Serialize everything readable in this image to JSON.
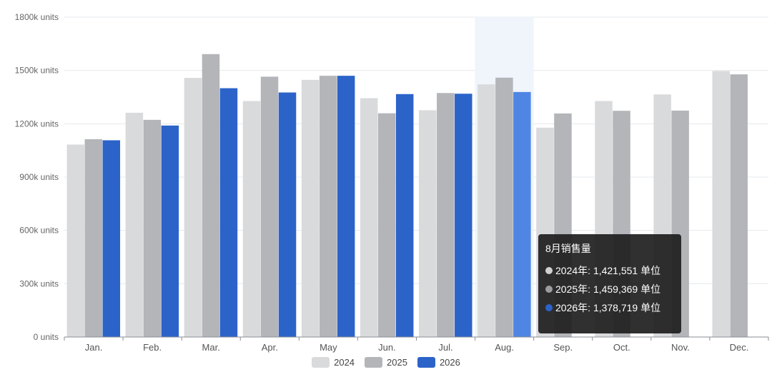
{
  "chart_data": {
    "type": "bar",
    "categories": [
      "Jan.",
      "Feb.",
      "Mar.",
      "Apr.",
      "May",
      "Jun.",
      "Jul.",
      "Aug.",
      "Sep.",
      "Oct.",
      "Nov.",
      "Dec."
    ],
    "series": [
      {
        "name": "2024",
        "color": "#d9dadc",
        "values": [
          1083000,
          1262000,
          1458000,
          1328000,
          1447000,
          1344000,
          1276000,
          1421551,
          1178000,
          1328000,
          1365000,
          1497000
        ]
      },
      {
        "name": "2025",
        "color": "#b3b5b9",
        "values": [
          1113000,
          1222000,
          1592000,
          1465000,
          1470000,
          1259000,
          1373000,
          1459369,
          1258000,
          1273000,
          1274000,
          1478000
        ]
      },
      {
        "name": "2026",
        "color": "#2b63c9",
        "values": [
          1107000,
          1190000,
          1400000,
          1376000,
          1470000,
          1367000,
          1369000,
          1378719,
          null,
          null,
          null,
          null
        ]
      }
    ],
    "ylim": [
      0,
      1800000
    ],
    "yticks": [
      0,
      300000,
      600000,
      900000,
      1200000,
      1500000,
      1800000
    ],
    "ytick_labels": [
      "0 units",
      "300k units",
      "600k units",
      "900k units",
      "1200k units",
      "1500k units",
      "1800k units"
    ],
    "grid": true,
    "legend_position": "bottom-center",
    "highlighted_category": "Aug."
  },
  "tooltip": {
    "title": "8月销售量",
    "rows": [
      {
        "label": "2024年:",
        "value": "1,421,551",
        "unit": "单位",
        "color": "#cfd0d2"
      },
      {
        "label": "2025年:",
        "value": "1,459,369",
        "unit": "单位",
        "color": "#9a9ca0"
      },
      {
        "label": "2026年:",
        "value": "1,378,719",
        "unit": "单位",
        "color": "#2b63c9"
      }
    ]
  }
}
